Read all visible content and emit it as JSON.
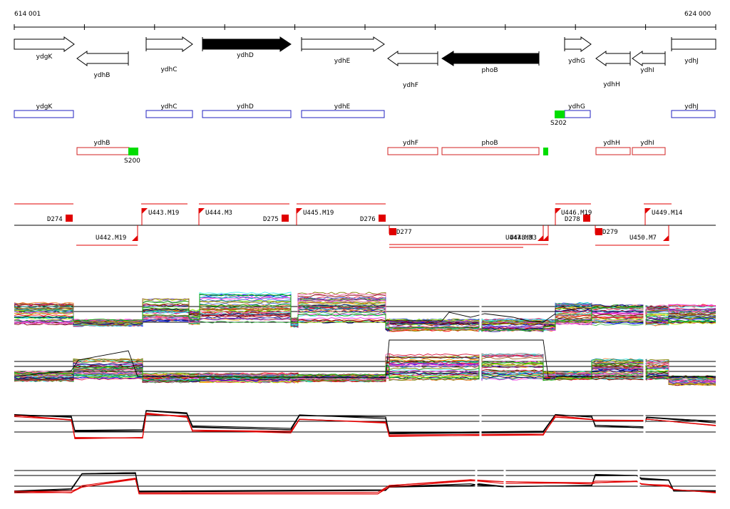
{
  "coords": {
    "start": "614 001",
    "end": "624 000"
  },
  "colors": {
    "annotated": "#2020c0",
    "predicted": "#d02020",
    "signal": "#00dd00",
    "segment": "#e00000",
    "axis": "#000000"
  },
  "genes": [
    {
      "name": "ydgK",
      "strand": "+",
      "filled": false
    },
    {
      "name": "ydhB",
      "strand": "-",
      "filled": false
    },
    {
      "name": "ydhC",
      "strand": "+",
      "filled": false
    },
    {
      "name": "ydhD",
      "strand": "+",
      "filled": true
    },
    {
      "name": "ydhE",
      "strand": "+",
      "filled": false
    },
    {
      "name": "ydhF",
      "strand": "-",
      "filled": false
    },
    {
      "name": "phoB",
      "strand": "-",
      "filled": true
    },
    {
      "name": "ydhG",
      "strand": "+",
      "filled": false
    },
    {
      "name": "ydhH",
      "strand": "-",
      "filled": false
    },
    {
      "name": "ydhI",
      "strand": "-",
      "filled": false
    },
    {
      "name": "ydhJ",
      "strand": "+",
      "filled": false
    }
  ],
  "annotation_row_forward": [
    "ydgK",
    "ydhC",
    "ydhD",
    "ydhE",
    "ydhG",
    "ydhJ"
  ],
  "annotation_row_reverse": [
    "ydhB",
    "ydhF",
    "phoB",
    "ydhH",
    "ydhI"
  ],
  "signal_labels": [
    "S200",
    "S202"
  ],
  "segments_forward": [
    "D274",
    "U443.M19",
    "U444.M3",
    "D275",
    "U445.M19",
    "D276",
    "U446.M19",
    "D278",
    "U449.M14"
  ],
  "segments_reverse": [
    "U442.M19",
    "D277",
    "U447.M3",
    "U448.M3",
    "D279",
    "U450.M7"
  ],
  "tracks": [
    "expression-track-1",
    "expression-track-2",
    "expression-track-3",
    "expression-track-4"
  ]
}
